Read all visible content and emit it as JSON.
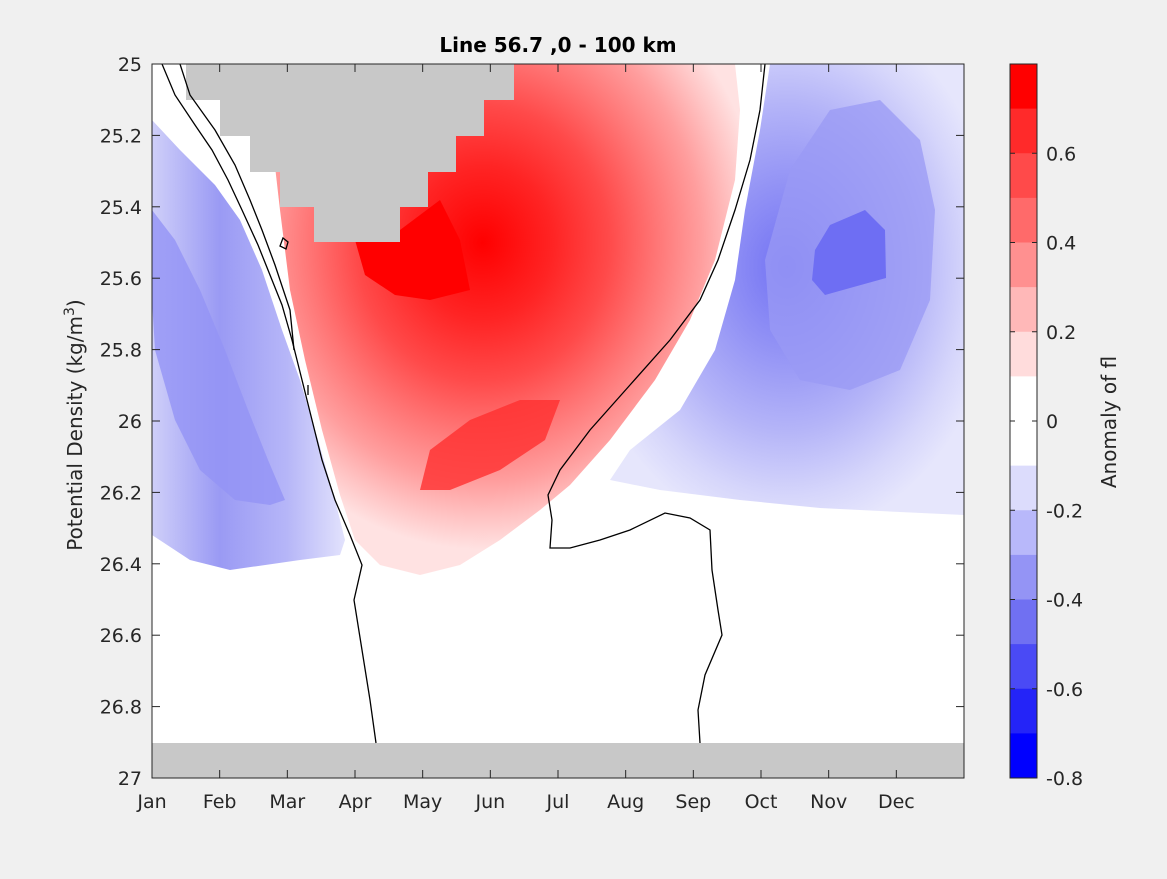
{
  "chart_data": {
    "type": "heatmap",
    "title": "Line 56.7 ,0 - 100 km",
    "xlabel": "",
    "ylabel": "Potential Density (kg/m",
    "ylabel_sup": "3",
    "ylabel_close": ")",
    "x_categories": [
      "Jan",
      "Feb",
      "Mar",
      "Apr",
      "May",
      "Jun",
      "Jul",
      "Aug",
      "Sep",
      "Oct",
      "Nov",
      "Dec"
    ],
    "y_ticks": [
      "25",
      "25.2",
      "25.4",
      "25.6",
      "25.8",
      "26",
      "26.2",
      "26.4",
      "26.6",
      "26.8",
      "27"
    ],
    "ylim": [
      25,
      27
    ],
    "y_reversed": true,
    "colorbar": {
      "label": "Anomaly of fl",
      "ticks": [
        "0.6",
        "0.4",
        "0.2",
        "0",
        "-0.2",
        "-0.4",
        "-0.6",
        "-0.8"
      ],
      "clim": [
        -0.8,
        0.8
      ],
      "levels": 16,
      "colors_top_to_bottom": [
        "#ff0000",
        "#ff2a2a",
        "#ff4a4a",
        "#ff6a6a",
        "#ff9090",
        "#ffb8b8",
        "#ffdcdc",
        "#ffffff",
        "#ffffff",
        "#dcdcfc",
        "#b8b8fa",
        "#9494f5",
        "#7070f2",
        "#4a4af5",
        "#2424f8",
        "#0000ff"
      ]
    },
    "missing_data_color": "#c8c8c8",
    "features": {
      "positive_anomaly_core": {
        "month": "May",
        "density": 25.55,
        "value": 0.8
      },
      "negative_anomaly_core": {
        "month": "Nov",
        "density": 25.6,
        "value": -0.4
      },
      "zero_contour": "black"
    }
  }
}
